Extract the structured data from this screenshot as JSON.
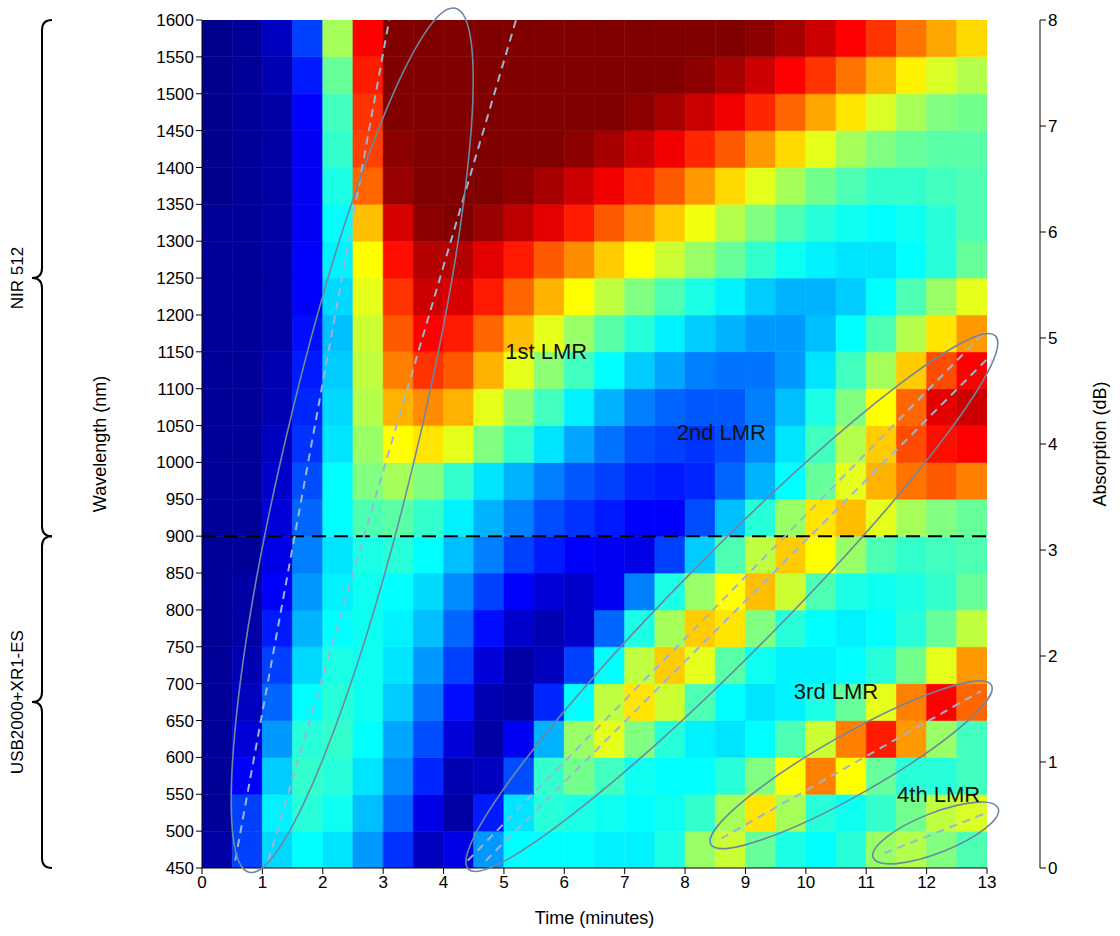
{
  "chart_data": {
    "type": "heatmap",
    "xlabel": "Time (minutes)",
    "ylabel": "Wavelength (nm)",
    "xlim": [
      0,
      13
    ],
    "xticks": [
      0,
      1,
      2,
      3,
      4,
      5,
      6,
      7,
      8,
      9,
      10,
      11,
      12,
      13
    ],
    "ylim": [
      450,
      1600
    ],
    "yticks": [
      450,
      500,
      550,
      600,
      650,
      700,
      750,
      800,
      850,
      900,
      950,
      1000,
      1050,
      1100,
      1150,
      1200,
      1250,
      1300,
      1350,
      1400,
      1450,
      1500,
      1550,
      1600
    ],
    "cells": {
      "x_edges": [
        0,
        0.5,
        1,
        1.5,
        2,
        2.5,
        3,
        3.5,
        4,
        4.5,
        5,
        5.5,
        6,
        6.5,
        7,
        7.5,
        8,
        8.5,
        9,
        9.5,
        10,
        10.5,
        11,
        11.5,
        12,
        12.5,
        13
      ],
      "y_edges": [
        450,
        500,
        550,
        600,
        650,
        700,
        750,
        800,
        850,
        900,
        950,
        1000,
        1050,
        1100,
        1150,
        1200,
        1250,
        1300,
        1350,
        1400,
        1450,
        1500,
        1550,
        1600
      ],
      "values": [
        [
          0.3,
          1.5,
          2.7,
          3.0,
          2.8,
          2.2,
          1.4,
          0.5,
          0.8,
          2.2,
          3.0,
          3.0,
          3.0,
          2.9,
          2.9,
          3.2,
          4.2,
          4.6,
          3.8,
          3.2,
          3.0,
          3.3,
          4.2,
          4.4,
          4.0,
          3.6
        ],
        [
          0.2,
          1.5,
          2.9,
          3.3,
          3.1,
          2.5,
          1.8,
          0.8,
          0.3,
          1.2,
          2.8,
          3.3,
          3.2,
          3.1,
          3.0,
          3.1,
          3.4,
          4.3,
          5.2,
          4.3,
          3.3,
          3.1,
          3.4,
          3.9,
          4.5,
          4.7
        ],
        [
          0.2,
          1.0,
          2.6,
          3.4,
          3.3,
          2.8,
          2.1,
          1.3,
          0.4,
          0.5,
          1.6,
          3.4,
          3.9,
          3.5,
          3.1,
          3.0,
          3.0,
          3.3,
          4.0,
          5.0,
          6.0,
          5.0,
          3.8,
          3.3,
          3.3,
          3.5
        ],
        [
          0.2,
          0.7,
          2.2,
          3.3,
          3.4,
          3.0,
          2.3,
          1.6,
          0.7,
          0.3,
          0.9,
          2.4,
          4.2,
          4.8,
          4.0,
          3.3,
          2.9,
          2.8,
          3.0,
          3.6,
          4.6,
          6.0,
          6.8,
          5.8,
          4.2,
          3.5
        ],
        [
          0.2,
          0.5,
          1.8,
          3.0,
          3.3,
          3.1,
          2.6,
          1.9,
          1.1,
          0.4,
          0.3,
          1.3,
          3.0,
          4.5,
          5.2,
          4.6,
          3.6,
          3.0,
          2.8,
          2.9,
          3.2,
          3.8,
          4.8,
          6.0,
          7.0,
          6.2
        ],
        [
          0.2,
          0.4,
          1.5,
          2.7,
          3.2,
          3.1,
          2.8,
          2.2,
          1.5,
          0.7,
          0.3,
          0.5,
          1.5,
          3.0,
          4.5,
          5.4,
          4.8,
          3.7,
          3.1,
          2.9,
          2.9,
          3.0,
          3.3,
          3.9,
          4.8,
          5.8
        ],
        [
          0.2,
          0.3,
          1.2,
          2.4,
          3.0,
          3.1,
          2.9,
          2.5,
          1.8,
          1.1,
          0.6,
          0.4,
          0.6,
          1.8,
          3.2,
          4.3,
          5.4,
          5.2,
          4.0,
          3.3,
          3.0,
          2.9,
          3.0,
          3.3,
          3.8,
          4.5
        ],
        [
          0.2,
          0.3,
          1.0,
          2.2,
          2.9,
          3.1,
          3.0,
          2.7,
          2.1,
          1.5,
          1.0,
          0.7,
          0.6,
          0.9,
          2.0,
          3.2,
          4.2,
          5.0,
          5.5,
          4.6,
          3.6,
          3.2,
          3.1,
          3.2,
          3.4,
          3.8
        ],
        [
          0.2,
          0.2,
          0.8,
          2.0,
          2.8,
          3.2,
          3.3,
          3.0,
          2.5,
          2.0,
          1.5,
          1.2,
          1.0,
          0.9,
          0.8,
          1.5,
          2.6,
          3.6,
          4.5,
          5.4,
          5.0,
          4.2,
          3.6,
          3.4,
          3.5,
          3.6
        ],
        [
          0.2,
          0.2,
          0.7,
          1.8,
          3.0,
          3.6,
          3.7,
          3.4,
          2.9,
          2.4,
          2.0,
          1.6,
          1.4,
          1.2,
          1.0,
          1.0,
          1.6,
          2.5,
          3.3,
          4.2,
          5.2,
          5.5,
          4.8,
          4.3,
          4.0,
          3.8
        ],
        [
          0.2,
          0.2,
          0.6,
          1.6,
          3.0,
          4.0,
          4.3,
          4.0,
          3.4,
          2.8,
          2.4,
          2.0,
          1.7,
          1.5,
          1.3,
          1.2,
          1.3,
          1.8,
          2.4,
          3.0,
          3.8,
          4.8,
          5.6,
          6.1,
          6.3,
          6.0
        ],
        [
          0.2,
          0.2,
          0.5,
          1.4,
          2.8,
          4.2,
          5.0,
          5.2,
          4.8,
          4.0,
          3.4,
          2.8,
          2.3,
          1.9,
          1.6,
          1.5,
          1.4,
          1.6,
          2.1,
          2.8,
          3.5,
          4.4,
          5.4,
          6.4,
          6.9,
          7.0
        ],
        [
          0.2,
          0.2,
          0.4,
          1.3,
          2.7,
          4.4,
          5.6,
          5.9,
          5.6,
          4.8,
          4.1,
          3.5,
          2.9,
          2.4,
          2.0,
          1.8,
          1.7,
          1.7,
          2.0,
          2.5,
          3.2,
          4.0,
          5.0,
          6.2,
          7.2,
          7.4
        ],
        [
          0.2,
          0.2,
          0.4,
          1.2,
          2.6,
          4.5,
          6.0,
          6.6,
          6.3,
          5.6,
          4.8,
          4.1,
          3.5,
          3.0,
          2.6,
          2.3,
          2.0,
          1.9,
          1.9,
          2.2,
          2.8,
          3.5,
          4.3,
          5.4,
          6.4,
          7.0
        ],
        [
          0.2,
          0.2,
          0.3,
          1.1,
          2.5,
          4.6,
          6.3,
          7.0,
          6.8,
          6.2,
          5.5,
          4.8,
          4.2,
          3.7,
          3.3,
          2.9,
          2.6,
          2.4,
          2.2,
          2.2,
          2.5,
          3.0,
          3.6,
          4.4,
          5.2,
          5.8
        ],
        [
          0.2,
          0.2,
          0.3,
          1.0,
          2.7,
          4.8,
          6.6,
          7.4,
          7.3,
          6.8,
          6.2,
          5.6,
          5.0,
          4.5,
          4.0,
          3.6,
          3.2,
          2.9,
          2.6,
          2.4,
          2.4,
          2.6,
          3.0,
          3.6,
          4.2,
          4.8
        ],
        [
          0.2,
          0.2,
          0.3,
          1.0,
          2.9,
          5.0,
          6.9,
          7.6,
          7.6,
          7.2,
          6.8,
          6.3,
          5.9,
          5.4,
          5.0,
          4.6,
          4.2,
          3.8,
          3.4,
          3.1,
          2.9,
          2.8,
          2.8,
          3.0,
          3.3,
          3.8
        ],
        [
          0.2,
          0.2,
          0.3,
          0.9,
          3.0,
          5.5,
          7.3,
          7.9,
          8.0,
          7.8,
          7.5,
          7.2,
          6.8,
          6.3,
          5.9,
          5.4,
          4.9,
          4.4,
          4.0,
          3.6,
          3.3,
          3.1,
          3.0,
          3.1,
          3.3,
          3.6
        ],
        [
          0.1,
          0.2,
          0.3,
          0.9,
          3.2,
          6.2,
          7.8,
          8.0,
          8.0,
          8.0,
          7.9,
          7.7,
          7.4,
          7.1,
          6.7,
          6.3,
          5.8,
          5.3,
          4.8,
          4.3,
          3.9,
          3.6,
          3.4,
          3.4,
          3.5,
          3.6
        ],
        [
          0.1,
          0.2,
          0.3,
          0.9,
          3.4,
          6.5,
          7.9,
          8.0,
          8.0,
          8.0,
          8.0,
          8.0,
          7.9,
          7.7,
          7.4,
          7.1,
          6.7,
          6.3,
          5.8,
          5.3,
          4.8,
          4.3,
          4.0,
          3.8,
          3.7,
          3.7
        ],
        [
          0.1,
          0.2,
          0.3,
          1.0,
          3.5,
          6.6,
          8.0,
          8.0,
          8.0,
          8.0,
          8.0,
          8.0,
          8.0,
          8.0,
          7.9,
          7.7,
          7.4,
          7.1,
          6.7,
          6.2,
          5.7,
          5.2,
          4.7,
          4.3,
          4.0,
          3.9
        ],
        [
          0.1,
          0.2,
          0.4,
          1.2,
          3.8,
          6.8,
          8.0,
          8.0,
          8.0,
          8.0,
          8.0,
          8.0,
          8.0,
          8.0,
          8.0,
          8.0,
          7.9,
          7.7,
          7.4,
          7.0,
          6.6,
          6.1,
          5.6,
          5.1,
          4.7,
          4.4
        ],
        [
          0.1,
          0.2,
          0.5,
          1.5,
          4.3,
          7.0,
          8.0,
          8.0,
          8.0,
          8.0,
          8.0,
          8.0,
          8.0,
          8.0,
          8.0,
          8.0,
          8.0,
          8.0,
          7.9,
          7.7,
          7.4,
          7.0,
          6.6,
          6.1,
          5.7,
          5.3
        ]
      ]
    },
    "colorbar": {
      "label": "Absorption (dB)",
      "range": [
        0,
        8
      ],
      "ticks": [
        0,
        1,
        2,
        3,
        4,
        5,
        6,
        7,
        8
      ]
    },
    "divider": 900,
    "spectrometers": [
      {
        "label": "NIR 512",
        "range": [
          900,
          1600
        ]
      },
      {
        "label": "USB2000+XR1-ES",
        "range": [
          450,
          900
        ]
      }
    ],
    "annotations": [
      {
        "text": "1st LMR",
        "x": 5.7,
        "y": 1150,
        "lines": [
          [
            [
              0.55,
              460
            ],
            [
              3.1,
              1600
            ]
          ],
          [
            [
              1.1,
              460
            ],
            [
              5.2,
              1600
            ]
          ]
        ]
      },
      {
        "text": "2nd LMR",
        "x": 8.6,
        "y": 1040,
        "lines": [
          [
            [
              4.4,
              460
            ],
            [
              13,
              1180
            ]
          ],
          [
            [
              4.7,
              460
            ],
            [
              13,
              1140
            ]
          ]
        ]
      },
      {
        "text": "3rd LMR",
        "x": 10.5,
        "y": 690,
        "lines": [
          [
            [
              8.6,
              490
            ],
            [
              12.9,
              690
            ]
          ]
        ]
      },
      {
        "text": "4th LMR",
        "x": 12.2,
        "y": 550,
        "lines": [
          [
            [
              11.3,
              470
            ],
            [
              13,
              525
            ]
          ]
        ]
      }
    ]
  }
}
